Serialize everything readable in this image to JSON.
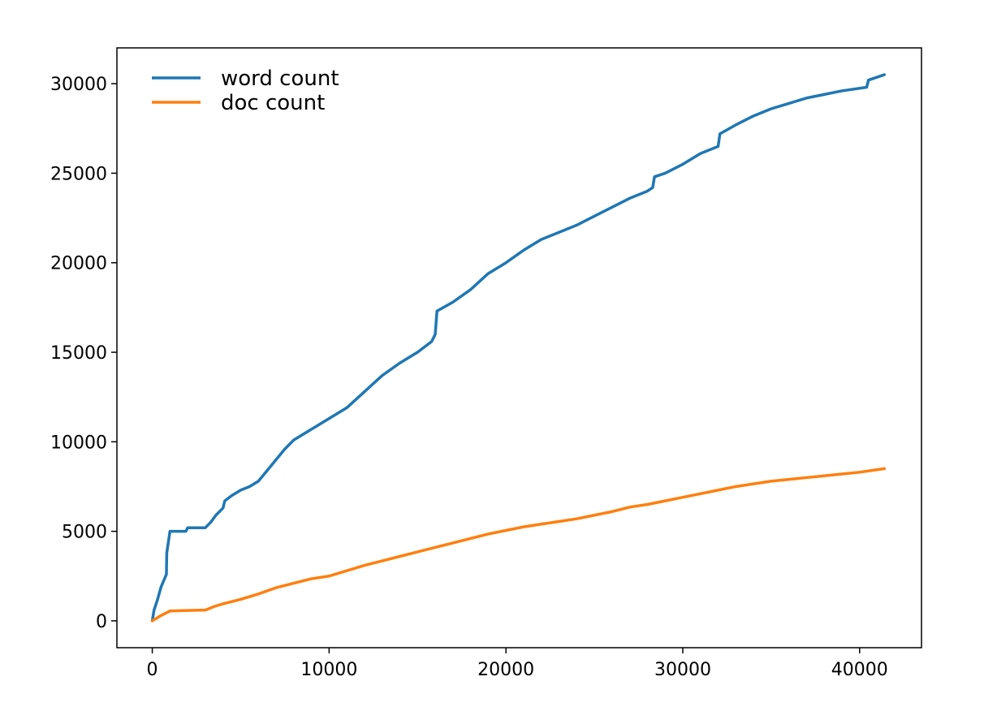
{
  "chart_data": {
    "type": "line",
    "title": "",
    "xlabel": "",
    "ylabel": "",
    "xlim": [
      -2000,
      43500
    ],
    "ylim": [
      -1500,
      32000
    ],
    "xticks": [
      0,
      10000,
      20000,
      30000,
      40000
    ],
    "yticks": [
      0,
      5000,
      10000,
      15000,
      20000,
      25000,
      30000
    ],
    "grid": false,
    "legend_position": "upper-left",
    "series": [
      {
        "name": "word count",
        "color": "#1f77b4",
        "points": [
          [
            0,
            0
          ],
          [
            100,
            600
          ],
          [
            300,
            1200
          ],
          [
            500,
            1900
          ],
          [
            800,
            2600
          ],
          [
            820,
            3800
          ],
          [
            1000,
            5000
          ],
          [
            1900,
            5000
          ],
          [
            2000,
            5200
          ],
          [
            3000,
            5200
          ],
          [
            3300,
            5500
          ],
          [
            3600,
            5900
          ],
          [
            4000,
            6300
          ],
          [
            4100,
            6700
          ],
          [
            4500,
            7000
          ],
          [
            5000,
            7300
          ],
          [
            5500,
            7500
          ],
          [
            6000,
            7800
          ],
          [
            6500,
            8400
          ],
          [
            7000,
            9000
          ],
          [
            7500,
            9600
          ],
          [
            8000,
            10100
          ],
          [
            9000,
            10700
          ],
          [
            10000,
            11300
          ],
          [
            11000,
            11900
          ],
          [
            12000,
            12800
          ],
          [
            13000,
            13700
          ],
          [
            14000,
            14400
          ],
          [
            15000,
            15000
          ],
          [
            15800,
            15600
          ],
          [
            16000,
            16000
          ],
          [
            16100,
            17300
          ],
          [
            17000,
            17800
          ],
          [
            18000,
            18500
          ],
          [
            19000,
            19400
          ],
          [
            20000,
            20000
          ],
          [
            21000,
            20700
          ],
          [
            22000,
            21300
          ],
          [
            23000,
            21700
          ],
          [
            24000,
            22100
          ],
          [
            25000,
            22600
          ],
          [
            26000,
            23100
          ],
          [
            27000,
            23600
          ],
          [
            28000,
            24000
          ],
          [
            28300,
            24200
          ],
          [
            28400,
            24800
          ],
          [
            29000,
            25000
          ],
          [
            30000,
            25500
          ],
          [
            31000,
            26100
          ],
          [
            32000,
            26500
          ],
          [
            32100,
            27200
          ],
          [
            33000,
            27700
          ],
          [
            34000,
            28200
          ],
          [
            35000,
            28600
          ],
          [
            36000,
            28900
          ],
          [
            37000,
            29200
          ],
          [
            38000,
            29400
          ],
          [
            39000,
            29600
          ],
          [
            40400,
            29800
          ],
          [
            40500,
            30200
          ],
          [
            41400,
            30500
          ]
        ]
      },
      {
        "name": "doc count",
        "color": "#ff7f0e",
        "points": [
          [
            0,
            0
          ],
          [
            500,
            300
          ],
          [
            1000,
            550
          ],
          [
            2000,
            580
          ],
          [
            3000,
            600
          ],
          [
            3500,
            800
          ],
          [
            4000,
            950
          ],
          [
            5000,
            1200
          ],
          [
            6000,
            1500
          ],
          [
            7000,
            1850
          ],
          [
            8000,
            2100
          ],
          [
            9000,
            2350
          ],
          [
            10000,
            2500
          ],
          [
            11000,
            2800
          ],
          [
            12000,
            3100
          ],
          [
            13000,
            3350
          ],
          [
            14000,
            3600
          ],
          [
            15000,
            3850
          ],
          [
            16000,
            4100
          ],
          [
            17000,
            4350
          ],
          [
            18000,
            4600
          ],
          [
            19000,
            4850
          ],
          [
            20000,
            5050
          ],
          [
            21000,
            5250
          ],
          [
            22000,
            5400
          ],
          [
            23000,
            5550
          ],
          [
            24000,
            5700
          ],
          [
            25000,
            5900
          ],
          [
            26000,
            6100
          ],
          [
            27000,
            6350
          ],
          [
            28000,
            6500
          ],
          [
            29000,
            6700
          ],
          [
            30000,
            6900
          ],
          [
            31000,
            7100
          ],
          [
            32000,
            7300
          ],
          [
            33000,
            7500
          ],
          [
            34000,
            7650
          ],
          [
            35000,
            7800
          ],
          [
            36000,
            7900
          ],
          [
            37000,
            8000
          ],
          [
            38000,
            8100
          ],
          [
            39000,
            8200
          ],
          [
            40000,
            8300
          ],
          [
            41400,
            8500
          ]
        ]
      }
    ]
  }
}
